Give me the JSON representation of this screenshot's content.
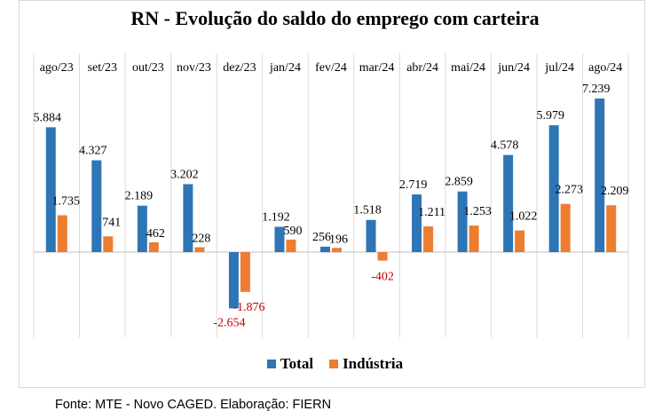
{
  "title": "RN - Evolução do saldo do emprego com carteira",
  "source": "Fonte: MTE - Novo CAGED. Elaboração: FIERN",
  "colors": {
    "total": "#2e75b6",
    "industria": "#ed7d31",
    "negative_label": "#c00000"
  },
  "chart_data": {
    "type": "bar",
    "title": "RN - Evolução do saldo do emprego com carteira",
    "categories": [
      "ago/23",
      "set/23",
      "out/23",
      "nov/23",
      "dez/23",
      "jan/24",
      "fev/24",
      "mar/24",
      "abr/24",
      "mai/24",
      "jun/24",
      "jul/24",
      "ago/24"
    ],
    "series": [
      {
        "name": "Total",
        "values": [
          5884,
          4327,
          2189,
          3202,
          -2654,
          1192,
          256,
          1518,
          2719,
          2859,
          4578,
          5979,
          7239
        ],
        "labels": [
          "5.884",
          "4.327",
          "2.189",
          "3.202",
          "-2.654",
          "1.192",
          "256",
          "1.518",
          "2.719",
          "2.859",
          "4.578",
          "5.979",
          "7.239"
        ]
      },
      {
        "name": "Indústria",
        "values": [
          1735,
          741,
          462,
          228,
          -1876,
          590,
          196,
          -402,
          1211,
          1253,
          1022,
          2273,
          2209
        ],
        "labels": [
          "1.735",
          "741",
          "462",
          "228",
          "-1.876",
          "590",
          "196",
          "-402",
          "1.211",
          "1.253",
          "1.022",
          "2.273",
          "2.209"
        ]
      }
    ],
    "legend": "bottom",
    "grid": "vertical"
  }
}
